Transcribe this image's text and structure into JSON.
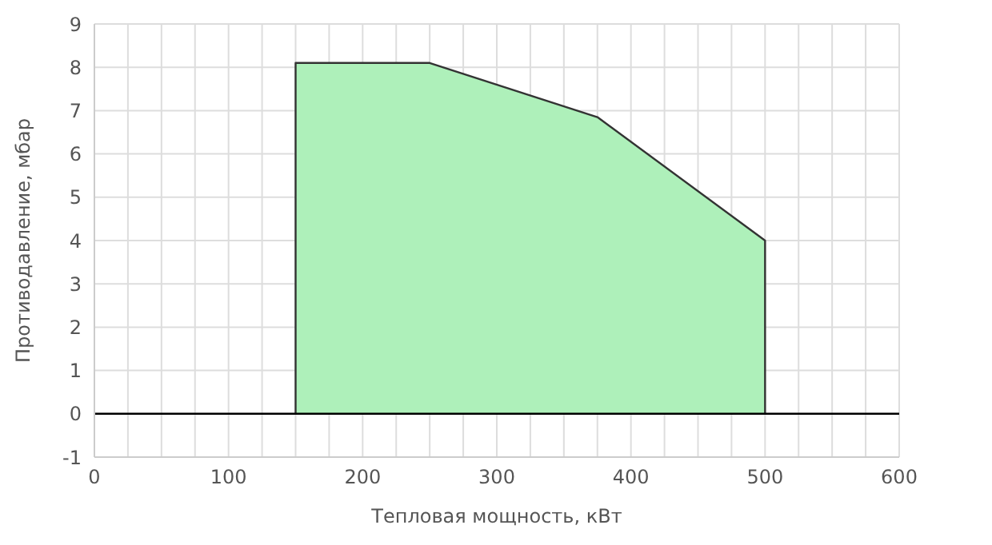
{
  "chart_data": {
    "type": "area",
    "xlabel": "Тепловая мощность, кВт",
    "ylabel": "Противодавление, мбар",
    "x": [
      150,
      150,
      250,
      375,
      500,
      500
    ],
    "series": [
      {
        "color": "#aef0ba",
        "values": [
          0,
          8.1,
          8.1,
          6.85,
          4,
          0
        ]
      }
    ],
    "xlim": [
      0,
      600
    ],
    "xticks": [
      0,
      {
        "value": 25,
        "label": null
      },
      {
        "value": 50,
        "label": null
      },
      {
        "value": 75,
        "label": null
      },
      100,
      {
        "value": 125,
        "label": null
      },
      {
        "value": 150,
        "label": null
      },
      {
        "value": 175,
        "label": null
      },
      200,
      {
        "value": 225,
        "label": null
      },
      {
        "value": 250,
        "label": null
      },
      {
        "value": 275,
        "label": null
      },
      300,
      {
        "value": 325,
        "label": null
      },
      {
        "value": 350,
        "label": null
      },
      {
        "value": 375,
        "label": null
      },
      400,
      {
        "value": 425,
        "label": null
      },
      {
        "value": 450,
        "label": null
      },
      {
        "value": 475,
        "label": null
      },
      500,
      {
        "value": 525,
        "label": null
      },
      {
        "value": 550,
        "label": null
      },
      {
        "value": 575,
        "label": null
      },
      600
    ],
    "ylim": [
      -1,
      9
    ],
    "yticks": [
      -1,
      0,
      1,
      2,
      3,
      4,
      5,
      6,
      7,
      8,
      9
    ],
    "ref_lines": [
      {
        "axis": "y",
        "value": 0,
        "color": "#000000"
      }
    ],
    "grid": true,
    "legend": false,
    "marker": "none",
    "line_style": "solid"
  }
}
